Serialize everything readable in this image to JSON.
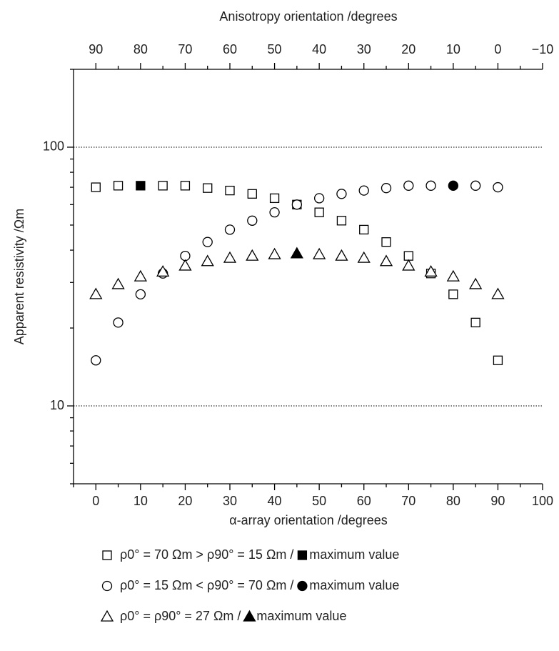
{
  "chart_data": {
    "type": "scatter",
    "x_label": "α-array orientation /degrees",
    "x2_label": "Anisotropy orientation /degrees",
    "y_label": "Apparent resistivity /Ωm",
    "log_y": true,
    "xlim": [
      -5,
      100
    ],
    "xticks": [
      0,
      10,
      20,
      30,
      40,
      50,
      60,
      70,
      80,
      90,
      100
    ],
    "xminorticks": [
      -5,
      5,
      15,
      25,
      35,
      45,
      55,
      65,
      75,
      85,
      95
    ],
    "x2lim": [
      95,
      -10
    ],
    "x2ticks": [
      90,
      80,
      70,
      60,
      50,
      40,
      30,
      20,
      10,
      0,
      {
        "value": -10,
        "label": "−10"
      }
    ],
    "x2minorticks": [
      85,
      75,
      65,
      55,
      45,
      35,
      25,
      15,
      5,
      -5
    ],
    "ylim": [
      5,
      200
    ],
    "yticks": [
      10,
      100
    ],
    "yminorticks": [
      5,
      6,
      7,
      8,
      9,
      20,
      30,
      40,
      50,
      60,
      70,
      80,
      90,
      200
    ],
    "grid_y": true,
    "x": [
      0,
      5,
      10,
      15,
      20,
      25,
      30,
      35,
      40,
      45,
      50,
      55,
      60,
      65,
      70,
      75,
      80,
      85,
      90
    ],
    "series": [
      {
        "name": "ρ0° = 70 Ωm > ρ90° = 15 Ωm /",
        "max_label": "maximum value",
        "marker": "square",
        "color": "#000000",
        "max_index": 2,
        "values": [
          70,
          71,
          71,
          71,
          71,
          69.5,
          68,
          66,
          63.5,
          60,
          56,
          52,
          48,
          43,
          38,
          32.5,
          27,
          21,
          15
        ]
      },
      {
        "name": "ρ0° = 15 Ωm < ρ90° = 70 Ωm /",
        "max_label": "maximum value",
        "marker": "circle",
        "color": "#000000",
        "max_index": 16,
        "values": [
          15,
          21,
          27,
          32.5,
          38,
          43,
          48,
          52,
          56,
          60,
          63.5,
          66,
          68,
          69.5,
          71,
          71,
          71,
          71,
          70
        ]
      },
      {
        "name": "ρ0° = ρ90° = 27 Ωm /",
        "max_label": "maximum value",
        "marker": "triangle",
        "color": "#000000",
        "max_index": 9,
        "values": [
          27,
          29.5,
          31.6,
          33,
          34.8,
          36.2,
          37.3,
          38,
          38.5,
          38.8,
          38.5,
          38,
          37.3,
          36.2,
          34.8,
          33,
          31.6,
          29.5,
          27
        ]
      }
    ]
  }
}
